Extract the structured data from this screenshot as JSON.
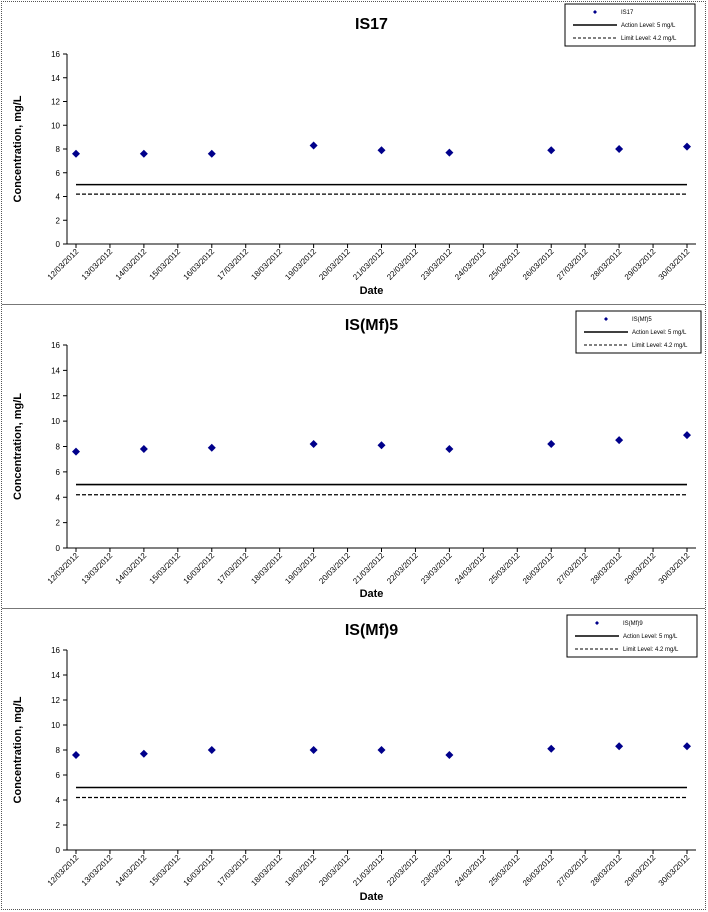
{
  "chart_data": [
    {
      "type": "scatter",
      "title": "IS17",
      "xlabel": "Date",
      "ylabel": "Concentration, mg/L",
      "ylim": [
        0,
        16
      ],
      "yticks": [
        0,
        2,
        4,
        6,
        8,
        10,
        12,
        14,
        16
      ],
      "categories": [
        "12/03/2012",
        "13/03/2012",
        "14/03/2012",
        "15/03/2012",
        "16/03/2012",
        "17/03/2012",
        "18/03/2012",
        "19/03/2012",
        "20/03/2012",
        "21/03/2012",
        "22/03/2012",
        "23/03/2012",
        "24/03/2012",
        "25/03/2012",
        "26/03/2012",
        "27/03/2012",
        "28/03/2012",
        "29/03/2012",
        "30/03/2012"
      ],
      "series": [
        {
          "name": "IS17",
          "kind": "points",
          "color": "#00008b",
          "x": [
            "12/03/2012",
            "14/03/2012",
            "16/03/2012",
            "19/03/2012",
            "21/03/2012",
            "23/03/2012",
            "26/03/2012",
            "28/03/2012",
            "30/03/2012"
          ],
          "y": [
            7.6,
            7.6,
            7.6,
            8.3,
            7.9,
            7.7,
            7.9,
            8.0,
            8.2
          ]
        },
        {
          "name": "Action Level: 5 mg/L",
          "kind": "hline",
          "value": 5,
          "dash": false,
          "color": "#000000"
        },
        {
          "name": "Limit Level: 4.2 mg/L",
          "kind": "hline",
          "value": 4.2,
          "dash": true,
          "color": "#000000"
        }
      ],
      "grid": false,
      "legend": "top-right"
    },
    {
      "type": "scatter",
      "title": "IS(Mf)5",
      "xlabel": "Date",
      "ylabel": "Concentration, mg/L",
      "ylim": [
        0,
        16
      ],
      "yticks": [
        0,
        2,
        4,
        6,
        8,
        10,
        12,
        14,
        16
      ],
      "categories": [
        "12/03/2012",
        "13/03/2012",
        "14/03/2012",
        "15/03/2012",
        "16/03/2012",
        "17/03/2012",
        "18/03/2012",
        "19/03/2012",
        "20/03/2012",
        "21/03/2012",
        "22/03/2012",
        "23/03/2012",
        "24/03/2012",
        "25/03/2012",
        "26/03/2012",
        "27/03/2012",
        "28/03/2012",
        "29/03/2012",
        "30/03/2012"
      ],
      "series": [
        {
          "name": "IS(Mf)5",
          "kind": "points",
          "color": "#00008b",
          "x": [
            "12/03/2012",
            "14/03/2012",
            "16/03/2012",
            "19/03/2012",
            "21/03/2012",
            "23/03/2012",
            "26/03/2012",
            "28/03/2012",
            "30/03/2012"
          ],
          "y": [
            7.6,
            7.8,
            7.9,
            8.2,
            8.1,
            7.8,
            8.2,
            8.5,
            8.9
          ]
        },
        {
          "name": "Action Level: 5 mg/L",
          "kind": "hline",
          "value": 5,
          "dash": false,
          "color": "#000000"
        },
        {
          "name": "Limit Level: 4.2 mg/L",
          "kind": "hline",
          "value": 4.2,
          "dash": true,
          "color": "#000000"
        }
      ],
      "grid": false,
      "legend": "top-right"
    },
    {
      "type": "scatter",
      "title": "IS(Mf)9",
      "xlabel": "Date",
      "ylabel": "Concentration, mg/L",
      "ylim": [
        0,
        16
      ],
      "yticks": [
        0,
        2,
        4,
        6,
        8,
        10,
        12,
        14,
        16
      ],
      "categories": [
        "12/03/2012",
        "13/03/2012",
        "14/03/2012",
        "15/03/2012",
        "16/03/2012",
        "17/03/2012",
        "18/03/2012",
        "19/03/2012",
        "20/03/2012",
        "21/03/2012",
        "22/03/2012",
        "23/03/2012",
        "24/03/2012",
        "25/03/2012",
        "26/03/2012",
        "27/03/2012",
        "28/03/2012",
        "29/03/2012",
        "30/03/2012"
      ],
      "series": [
        {
          "name": "IS(Mf)9",
          "kind": "points",
          "color": "#00008b",
          "x": [
            "12/03/2012",
            "14/03/2012",
            "16/03/2012",
            "19/03/2012",
            "21/03/2012",
            "23/03/2012",
            "26/03/2012",
            "28/03/2012",
            "30/03/2012"
          ],
          "y": [
            7.6,
            7.7,
            8.0,
            8.0,
            8.0,
            7.6,
            8.1,
            8.3,
            8.3
          ]
        },
        {
          "name": "Action Level: 5 mg/L",
          "kind": "hline",
          "value": 5,
          "dash": false,
          "color": "#000000"
        },
        {
          "name": "Limit Level: 4.2 mg/L",
          "kind": "hline",
          "value": 4.2,
          "dash": true,
          "color": "#000000"
        }
      ],
      "grid": false,
      "legend": "top-right"
    }
  ]
}
